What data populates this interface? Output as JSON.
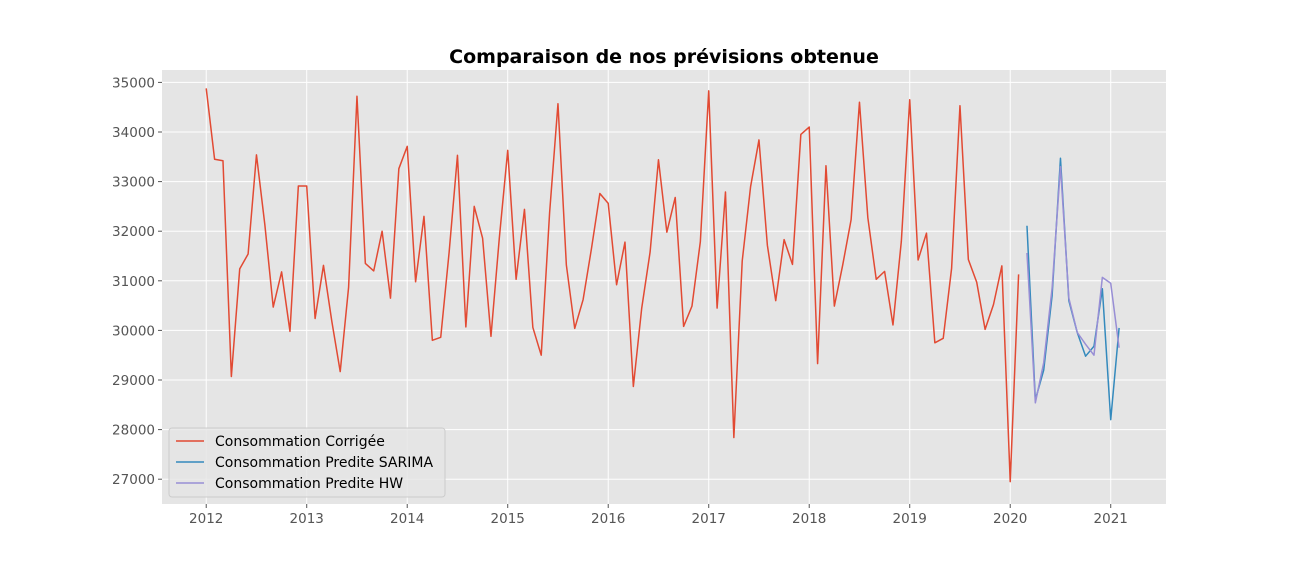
{
  "chart_data": {
    "type": "line",
    "title": "Comparaison de nos prévisions obtenue",
    "xlabel": "",
    "ylabel": "",
    "xlim": [
      2011.56,
      2021.55
    ],
    "ylim": [
      26500,
      35250
    ],
    "x_ticks": [
      2012,
      2013,
      2014,
      2015,
      2016,
      2017,
      2018,
      2019,
      2020,
      2021
    ],
    "y_ticks": [
      27000,
      28000,
      29000,
      30000,
      31000,
      32000,
      33000,
      34000,
      35000
    ],
    "grid": true,
    "legend_position": "lower-left",
    "background": "#e5e5e5",
    "series": [
      {
        "name": "Consommation Corrigée",
        "color": "#e24a33",
        "start_year": 2012,
        "start_month": 1,
        "values": [
          34880,
          33450,
          33420,
          29070,
          31240,
          31540,
          33540,
          32130,
          30470,
          31180,
          29980,
          32910,
          32910,
          30240,
          31310,
          30180,
          29170,
          30870,
          34720,
          31350,
          31200,
          32000,
          30650,
          33260,
          33710,
          30980,
          32300,
          29800,
          29860,
          31570,
          33530,
          30070,
          32500,
          31860,
          29880,
          31870,
          33630,
          31030,
          32440,
          30060,
          29500,
          32370,
          34570,
          31320,
          30040,
          30620,
          31650,
          32760,
          32560,
          30920,
          31780,
          28870,
          30450,
          31580,
          33440,
          31980,
          32680,
          30080,
          30490,
          31790,
          34830,
          30450,
          32790,
          27840,
          31400,
          32900,
          33840,
          31720,
          30600,
          31830,
          31330,
          33950,
          34100,
          29330,
          33320,
          30490,
          31320,
          32230,
          34600,
          32270,
          31030,
          31190,
          30110,
          31800,
          34650,
          31420,
          31960,
          29750,
          29840,
          31250,
          34530,
          31430,
          30970,
          30020,
          30520,
          31300,
          26950,
          31130
        ]
      },
      {
        "name": "Consommation Predite SARIMA",
        "color": "#348abd",
        "start_year": 2020,
        "start_month": 3,
        "values": [
          32110,
          28600,
          29200,
          30700,
          33470,
          30600,
          29960,
          29480,
          29680,
          30840,
          28200,
          30050
        ]
      },
      {
        "name": "Consommation Predite HW",
        "color": "#988ed5",
        "start_year": 2020,
        "start_month": 3,
        "values": [
          31560,
          28540,
          29350,
          30850,
          33300,
          30650,
          29960,
          29720,
          29500,
          31070,
          30950,
          29650
        ]
      }
    ]
  }
}
